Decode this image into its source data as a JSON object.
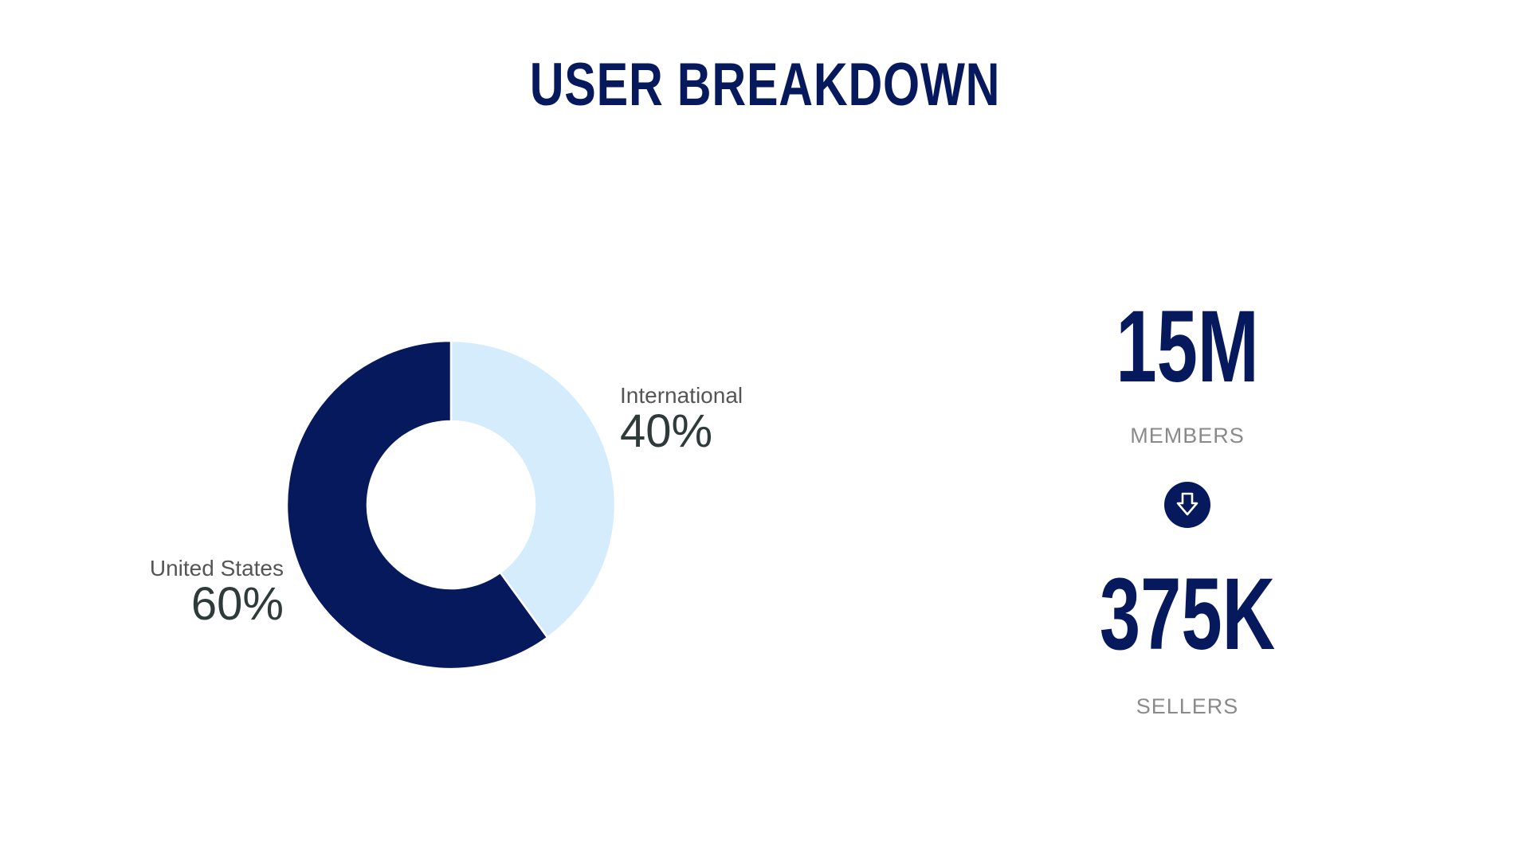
{
  "title": "USER BREAKDOWN",
  "colors": {
    "primary": "#06195c",
    "secondary": "#d4ecfb",
    "label_text": "#555555",
    "value_text": "#2f3a3a",
    "muted": "#8a8a8a"
  },
  "chart_data": {
    "type": "pie",
    "variant": "donut",
    "categories": [
      "United States",
      "International"
    ],
    "values": [
      60,
      40
    ],
    "value_labels": [
      "60%",
      "40%"
    ],
    "colors": [
      "#06195c",
      "#d4ecfb"
    ]
  },
  "stats": {
    "members": {
      "value": "15M",
      "label": "MEMBERS"
    },
    "arrow_icon": "arrow-down-icon",
    "sellers": {
      "value": "375K",
      "label": "SELLERS"
    }
  }
}
